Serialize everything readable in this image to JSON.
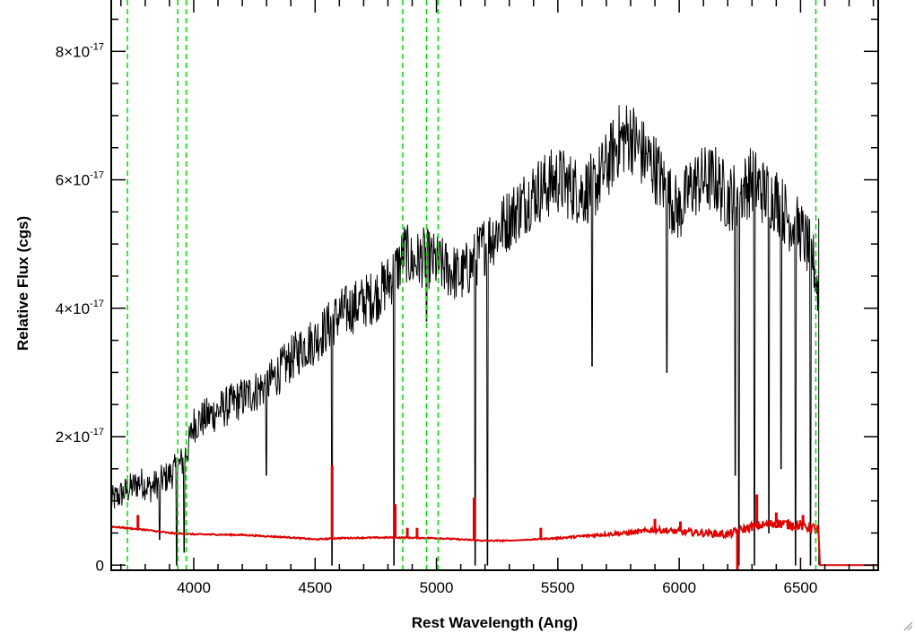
{
  "chart_data": {
    "type": "line",
    "title": "",
    "xlabel": "Rest Wavelength (Ang)",
    "ylabel": "Relative Flux (cgs)",
    "xlim": [
      3660,
      6820
    ],
    "ylim": [
      -8e-19,
      8.8e-17
    ],
    "x_ticks": [
      {
        "value": 4000,
        "label": "4000"
      },
      {
        "value": 4500,
        "label": "4500"
      },
      {
        "value": 5000,
        "label": "5000"
      },
      {
        "value": 5500,
        "label": "5500"
      },
      {
        "value": 6000,
        "label": "6000"
      },
      {
        "value": 6500,
        "label": "6500"
      }
    ],
    "y_ticks": [
      {
        "value": 0,
        "mantissa": "0",
        "exponent": ""
      },
      {
        "value": 2e-17,
        "mantissa": "2×10",
        "exponent": "-17"
      },
      {
        "value": 4e-17,
        "mantissa": "4×10",
        "exponent": "-17"
      },
      {
        "value": 6e-17,
        "mantissa": "6×10",
        "exponent": "-17"
      },
      {
        "value": 8e-17,
        "mantissa": "8×10",
        "exponent": "-17"
      }
    ],
    "x_minor_step": 100,
    "y_minor_step": 5e-18,
    "grid": false,
    "colors": {
      "spectrum": "#000000",
      "error": "#e00000",
      "lines": "#00dd00",
      "axes": "#000000"
    },
    "vertical_lines": [
      3727,
      3934,
      3969,
      4861,
      4959,
      5007,
      6563
    ],
    "series": [
      {
        "role": "spectrum",
        "color": "#000000",
        "x": [
          3660,
          3700,
          3740,
          3780,
          3820,
          3860,
          3900,
          3930,
          3950,
          3975,
          4000,
          4050,
          4100,
          4150,
          4200,
          4250,
          4300,
          4350,
          4400,
          4450,
          4500,
          4550,
          4600,
          4650,
          4700,
          4750,
          4800,
          4850,
          4870,
          4900,
          4950,
          5000,
          5050,
          5100,
          5150,
          5200,
          5250,
          5300,
          5350,
          5400,
          5450,
          5500,
          5550,
          5600,
          5650,
          5700,
          5750,
          5800,
          5850,
          5900,
          5950,
          6000,
          6050,
          6100,
          6150,
          6200,
          6250,
          6300,
          6350,
          6400,
          6450,
          6500,
          6550,
          6575
        ],
        "y": [
          1e-17,
          1.1e-17,
          1.2e-17,
          1.3e-17,
          1.2e-17,
          1.3e-17,
          1.4e-17,
          1.5e-17,
          1.6e-17,
          1.8e-17,
          2.2e-17,
          2.3e-17,
          2.4e-17,
          2.5e-17,
          2.6e-17,
          2.7e-17,
          2.8e-17,
          3e-17,
          3.2e-17,
          3.4e-17,
          3.5e-17,
          3.7e-17,
          3.9e-17,
          4e-17,
          4.1e-17,
          4.2e-17,
          4.4e-17,
          4.7e-17,
          4.9e-17,
          4.7e-17,
          4.8e-17,
          4.7e-17,
          4.6e-17,
          4.5e-17,
          4.7e-17,
          5e-17,
          5.2e-17,
          5.4e-17,
          5.6e-17,
          5.8e-17,
          5.9e-17,
          6e-17,
          5.9e-17,
          5.8e-17,
          5.9e-17,
          6.2e-17,
          6.6e-17,
          6.7e-17,
          6.4e-17,
          6.2e-17,
          5.8e-17,
          5.5e-17,
          5.9e-17,
          6e-17,
          6e-17,
          5.7e-17,
          5.8e-17,
          6e-17,
          5.8e-17,
          5.7e-17,
          5.4e-17,
          5.2e-17,
          4.8e-17,
          4.2e-17
        ]
      },
      {
        "role": "error",
        "color": "#e00000",
        "x": [
          3660,
          3800,
          3900,
          4000,
          4200,
          4400,
          4500,
          4600,
          4800,
          5000,
          5100,
          5200,
          5300,
          5400,
          5500,
          5600,
          5700,
          5800,
          5900,
          6000,
          6100,
          6200,
          6300,
          6400,
          6500,
          6575,
          6580,
          6820
        ],
        "y": [
          6e-18,
          5.5e-18,
          5e-18,
          4.8e-18,
          4.7e-18,
          4.3e-18,
          4e-18,
          4.2e-18,
          4.3e-18,
          4.2e-18,
          4e-18,
          3.8e-18,
          3.8e-18,
          4e-18,
          4.2e-18,
          4.5e-18,
          4.8e-18,
          5e-18,
          5.5e-18,
          5.2e-18,
          5e-18,
          4.8e-18,
          6e-18,
          6.5e-18,
          6.2e-18,
          5.5e-18,
          0.0,
          0.0
        ]
      }
    ],
    "absorption_spikes": [
      {
        "x": 3860,
        "ymin": 4e-18
      },
      {
        "x": 3930,
        "ymin": 0.0
      },
      {
        "x": 3960,
        "ymin": 2e-18
      },
      {
        "x": 4300,
        "ymin": 1.4e-17
      },
      {
        "x": 4570,
        "ymin": 0.0
      },
      {
        "x": 4825,
        "ymin": 0.0
      },
      {
        "x": 4960,
        "ymin": 3.8e-17
      },
      {
        "x": 5160,
        "ymin": 0.0
      },
      {
        "x": 5210,
        "ymin": 0.0
      },
      {
        "x": 5640,
        "ymin": 3.1e-17
      },
      {
        "x": 5950,
        "ymin": 3e-17
      },
      {
        "x": 6230,
        "ymin": 1.4e-17
      },
      {
        "x": 6245,
        "ymin": 0.0
      },
      {
        "x": 6310,
        "ymin": 0.0
      },
      {
        "x": 6370,
        "ymin": 5e-18
      },
      {
        "x": 6420,
        "ymin": 1.5e-17
      },
      {
        "x": 6480,
        "ymin": 0.0
      },
      {
        "x": 6540,
        "ymin": 0.0
      }
    ],
    "error_spikes": [
      {
        "x": 3770,
        "ymax": 7.8e-18
      },
      {
        "x": 4570,
        "ymax": 1.55e-17
      },
      {
        "x": 4830,
        "ymax": 9.5e-18
      },
      {
        "x": 4880,
        "ymax": 5.8e-18
      },
      {
        "x": 4920,
        "ymax": 5.8e-18
      },
      {
        "x": 5155,
        "ymax": 1.05e-17
      },
      {
        "x": 5430,
        "ymax": 5.8e-18
      },
      {
        "x": 5900,
        "ymax": 7.2e-18
      },
      {
        "x": 6005,
        "ymax": 6.8e-18
      },
      {
        "x": 6240,
        "ymax": -8e-19
      },
      {
        "x": 6320,
        "ymax": 1.1e-17
      },
      {
        "x": 6400,
        "ymax": 8.2e-18
      },
      {
        "x": 6510,
        "ymax": 7.8e-18
      }
    ]
  }
}
